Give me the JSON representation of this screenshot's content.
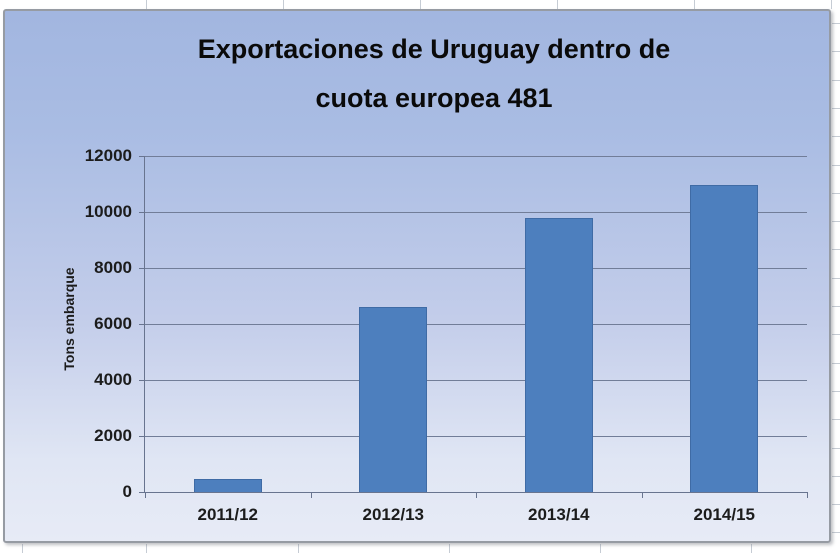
{
  "chart": {
    "title_line1": "Exportaciones de Uruguay dentro de",
    "title_line2": "cuota europea 481",
    "y_axis_title": "Tons embarque",
    "colors": {
      "bar_fill": "#4d7fbe",
      "bar_border": "#3f6ba5",
      "background_top": "#a2b6e0",
      "background_bottom": "#e7ebf6",
      "gridline": "#717d98",
      "axis": "#68748f",
      "tick_text": "#1c1c1c",
      "title_text": "#0a0a0a"
    }
  },
  "chart_data": {
    "type": "bar",
    "title": "Exportaciones de Uruguay dentro de cuota europea 481",
    "categories": [
      "2011/12",
      "2012/13",
      "2013/14",
      "2014/15"
    ],
    "values": [
      450,
      6600,
      9800,
      10950
    ],
    "xlabel": "",
    "ylabel": "Tons embarque",
    "ylim": [
      0,
      12000
    ],
    "yticks": [
      0,
      2000,
      4000,
      6000,
      8000,
      10000,
      12000
    ],
    "grid": true,
    "legend": false,
    "bar_color": "#4d7fbe"
  }
}
